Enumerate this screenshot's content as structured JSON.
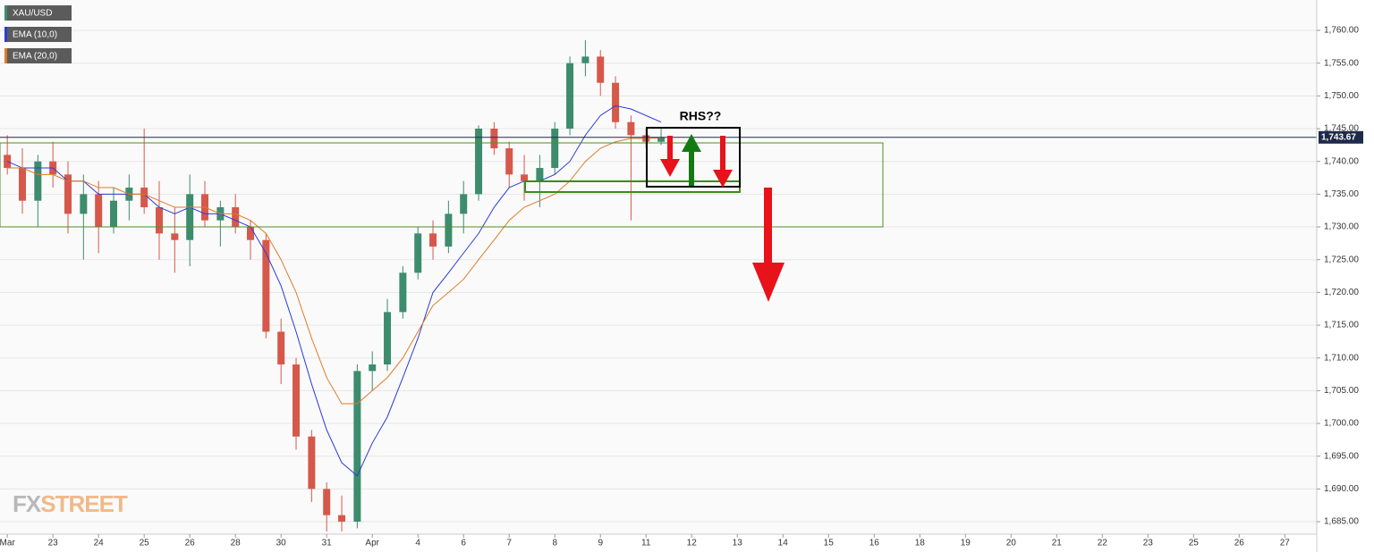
{
  "chart_data": {
    "type": "candlestick",
    "name": "XAU/USD",
    "up_color": "#3d8c6e",
    "down_color": "#d6584b",
    "x": [
      0,
      0.33,
      0.67,
      1,
      1.33,
      1.67,
      2,
      2.33,
      2.67,
      3,
      3.33,
      3.67,
      4,
      4.33,
      4.67,
      5,
      5.33,
      5.67,
      6,
      6.33,
      6.67,
      7,
      7.33,
      7.67,
      8,
      8.33,
      8.67,
      9,
      9.33,
      9.67,
      10,
      10.33,
      10.67,
      11,
      11.33,
      11.67,
      12,
      12.33,
      12.67,
      13,
      13.33,
      13.67,
      14,
      14.33
    ],
    "open": [
      1741,
      1739,
      1734,
      1740,
      1738,
      1732,
      1735,
      1730,
      1734,
      1736,
      1733,
      1729,
      1728,
      1735,
      1731,
      1733,
      1730,
      1728,
      1714,
      1709,
      1698,
      1690,
      1686,
      1685,
      1708,
      1709,
      1717,
      1723,
      1729,
      1727,
      1732,
      1735,
      1745,
      1742,
      1738,
      1737,
      1739,
      1745,
      1755,
      1756,
      1752,
      1746,
      1744,
      1743
    ],
    "high": [
      1744,
      1742,
      1741,
      1743,
      1740,
      1738,
      1737,
      1736,
      1738,
      1745,
      1737,
      1733,
      1738,
      1737,
      1734,
      1735,
      1731,
      1729,
      1716,
      1710,
      1699,
      1691,
      1689,
      1709,
      1711,
      1719,
      1724,
      1730,
      1731,
      1734,
      1737,
      1745.5,
      1746,
      1743,
      1741,
      1741,
      1746,
      1756,
      1758.5,
      1757,
      1753,
      1747,
      1745,
      1745
    ],
    "low": [
      1738,
      1732,
      1730,
      1736,
      1729,
      1725,
      1726,
      1729,
      1731,
      1732,
      1725,
      1723,
      1724,
      1730,
      1727,
      1729,
      1725,
      1713,
      1706,
      1696,
      1688,
      1683.5,
      1683.5,
      1684,
      1705,
      1708,
      1716,
      1722,
      1725,
      1726,
      1729,
      1734,
      1741,
      1736,
      1734,
      1733,
      1738,
      1744,
      1753,
      1750,
      1745,
      1731,
      1742,
      1742.5
    ],
    "close": [
      1739,
      1734,
      1740,
      1738,
      1732,
      1735,
      1730,
      1734,
      1736,
      1733,
      1729,
      1728,
      1735,
      1731,
      1733,
      1730,
      1728,
      1714,
      1709,
      1698,
      1690,
      1686,
      1685,
      1708,
      1709,
      1717,
      1723,
      1729,
      1727,
      1732,
      1735,
      1745,
      1742,
      1738,
      1737,
      1739,
      1745,
      1755,
      1756,
      1752,
      1746,
      1744,
      1743,
      1743.67
    ],
    "series": [
      {
        "name": "EMA (10,0)",
        "color": "#2b3bd8",
        "values": [
          1740,
          1739,
          1739,
          1739,
          1737,
          1737,
          1735,
          1735,
          1735,
          1735,
          1733,
          1732,
          1733,
          1732,
          1732,
          1731,
          1730,
          1726,
          1721,
          1714,
          1706,
          1699,
          1694,
          1692,
          1697,
          1701,
          1707,
          1713,
          1720,
          1723,
          1726,
          1729,
          1733,
          1736,
          1737,
          1737,
          1738,
          1740,
          1744,
          1747,
          1748.5,
          1748,
          1747,
          1746
        ]
      },
      {
        "name": "EMA (20,0)",
        "color": "#e07b27",
        "values": [
          1739,
          1739,
          1738,
          1738,
          1737,
          1737,
          1736,
          1736,
          1735,
          1735,
          1734,
          1733,
          1733,
          1733,
          1732,
          1732,
          1731,
          1729,
          1725,
          1720,
          1713,
          1707,
          1703,
          1703,
          1705,
          1707,
          1710,
          1714,
          1718,
          1720,
          1722,
          1725,
          1728,
          1731,
          1733,
          1734,
          1735,
          1737,
          1740,
          1742,
          1743,
          1743.5,
          1743.5,
          1743.6
        ]
      }
    ],
    "last_price": {
      "value": 1743.67,
      "label": "1,743.67"
    },
    "annotation": "RHS??",
    "watermark": [
      "FX",
      "STREET"
    ],
    "xlim": [
      -0.16,
      28.7
    ],
    "xticks": [
      {
        "value": 0,
        "label": "Mar"
      },
      {
        "value": 1,
        "label": "23"
      },
      {
        "value": 2,
        "label": "24"
      },
      {
        "value": 3,
        "label": "25"
      },
      {
        "value": 4,
        "label": "26"
      },
      {
        "value": 5,
        "label": "28"
      },
      {
        "value": 6,
        "label": "30"
      },
      {
        "value": 7,
        "label": "31"
      },
      {
        "value": 8,
        "label": "Apr"
      },
      {
        "value": 9,
        "label": "4"
      },
      {
        "value": 10,
        "label": "6"
      },
      {
        "value": 11,
        "label": "7"
      },
      {
        "value": 12,
        "label": "8"
      },
      {
        "value": 13,
        "label": "9"
      },
      {
        "value": 14,
        "label": "11"
      },
      {
        "value": 15,
        "label": "12"
      },
      {
        "value": 16,
        "label": "13"
      },
      {
        "value": 17,
        "label": "14"
      },
      {
        "value": 18,
        "label": "15"
      },
      {
        "value": 19,
        "label": "16"
      },
      {
        "value": 20,
        "label": "18"
      },
      {
        "value": 21,
        "label": "19"
      },
      {
        "value": 22,
        "label": "20"
      },
      {
        "value": 23,
        "label": "21"
      },
      {
        "value": 24,
        "label": "22"
      },
      {
        "value": 25,
        "label": "23"
      },
      {
        "value": 26,
        "label": "25"
      },
      {
        "value": 27,
        "label": "26"
      },
      {
        "value": 28,
        "label": "27"
      }
    ],
    "ylim": [
      1683.1,
      1764.64
    ],
    "yticks": [
      {
        "value": 1685,
        "label": "1,685.00"
      },
      {
        "value": 1690,
        "label": "1,690.00"
      },
      {
        "value": 1695,
        "label": "1,695.00"
      },
      {
        "value": 1700,
        "label": "1,700.00"
      },
      {
        "value": 1705,
        "label": "1,705.00"
      },
      {
        "value": 1710,
        "label": "1,710.00"
      },
      {
        "value": 1715,
        "label": "1,715.00"
      },
      {
        "value": 1720,
        "label": "1,720.00"
      },
      {
        "value": 1725,
        "label": "1,725.00"
      },
      {
        "value": 1730,
        "label": "1,730.00"
      },
      {
        "value": 1735,
        "label": "1,735.00"
      },
      {
        "value": 1740,
        "label": "1,740.00"
      },
      {
        "value": 1745,
        "label": "1,745.00"
      },
      {
        "value": 1750,
        "label": "1,750.00"
      },
      {
        "value": 1755,
        "label": "1,755.00"
      },
      {
        "value": 1760,
        "label": "1,760.00"
      }
    ],
    "grid": true
  }
}
